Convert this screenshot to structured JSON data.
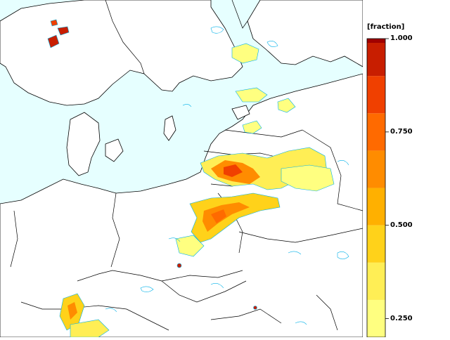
{
  "legend": {
    "title": "[fraction]",
    "ticks": [
      {
        "value": 1.0,
        "label": "1.000"
      },
      {
        "value": 0.75,
        "label": "0.750"
      },
      {
        "value": 0.5,
        "label": "0.500"
      },
      {
        "value": 0.25,
        "label": "0.250"
      }
    ],
    "bands": [
      {
        "from": 0.2,
        "to": 0.3,
        "color": "#ffff80"
      },
      {
        "from": 0.3,
        "to": 0.4,
        "color": "#ffee55"
      },
      {
        "from": 0.4,
        "to": 0.5,
        "color": "#ffd21a"
      },
      {
        "from": 0.5,
        "to": 0.6,
        "color": "#ffb000"
      },
      {
        "from": 0.6,
        "to": 0.7,
        "color": "#ff8c00"
      },
      {
        "from": 0.7,
        "to": 0.8,
        "color": "#ff6a00"
      },
      {
        "from": 0.8,
        "to": 0.9,
        "color": "#f04000"
      },
      {
        "from": 0.9,
        "to": 1.0,
        "color": "#c81e00"
      },
      {
        "from": 1.0,
        "to": 1.05,
        "color": "#a00000"
      }
    ]
  },
  "colors": {
    "sea": "#e6ffff",
    "land": "#ffffff",
    "border": "#000000",
    "contour": "#00b0e8"
  }
}
